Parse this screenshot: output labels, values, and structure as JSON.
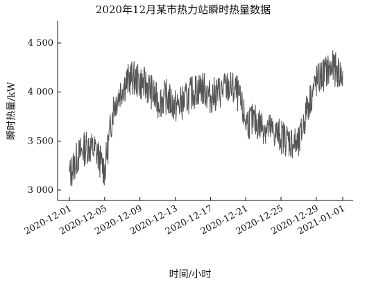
{
  "chart_data": {
    "type": "line",
    "title": "2020年12月某市热力站瞬时热量数据",
    "xlabel": "时间/小时",
    "ylabel": "瞬时热量/kW",
    "x_tick_labels": [
      "2020-12-01",
      "2020-12-05",
      "2020-12-09",
      "2020-12-13",
      "2020-12-17",
      "2020-12-21",
      "2020-12-25",
      "2020-12-29",
      "2021-01-01"
    ],
    "y_tick_labels": [
      "3 000",
      "3 500",
      "4 000",
      "4 500"
    ],
    "y_ticks": [
      3000,
      3500,
      4000,
      4500
    ],
    "ylim": [
      2900,
      4700
    ],
    "xlim": [
      "2020-11-30",
      "2021-01-01"
    ],
    "grid": false,
    "colors": {
      "line": "#555555",
      "axis": "#111111"
    },
    "series": [
      {
        "x": [
          "2020-12-01",
          "2020-12-02",
          "2020-12-03",
          "2020-12-04",
          "2020-12-05",
          "2020-12-06",
          "2020-12-07",
          "2020-12-08",
          "2020-12-09",
          "2020-12-10",
          "2020-12-11",
          "2020-12-12",
          "2020-12-13",
          "2020-12-14",
          "2020-12-15",
          "2020-12-16",
          "2020-12-17",
          "2020-12-18",
          "2020-12-19",
          "2020-12-20",
          "2020-12-21",
          "2020-12-22",
          "2020-12-23",
          "2020-12-24",
          "2020-12-25",
          "2020-12-26",
          "2020-12-27",
          "2020-12-28",
          "2020-12-29",
          "2020-12-30",
          "2020-12-31",
          "2021-01-01"
        ],
        "values": [
          3150,
          3350,
          3450,
          3400,
          3200,
          3850,
          4050,
          4150,
          4100,
          4050,
          3900,
          3950,
          3850,
          3900,
          4000,
          4050,
          3950,
          4000,
          4050,
          4000,
          3700,
          3700,
          3650,
          3600,
          3550,
          3500,
          3450,
          3850,
          4100,
          4200,
          4250,
          4150
        ]
      }
    ]
  }
}
